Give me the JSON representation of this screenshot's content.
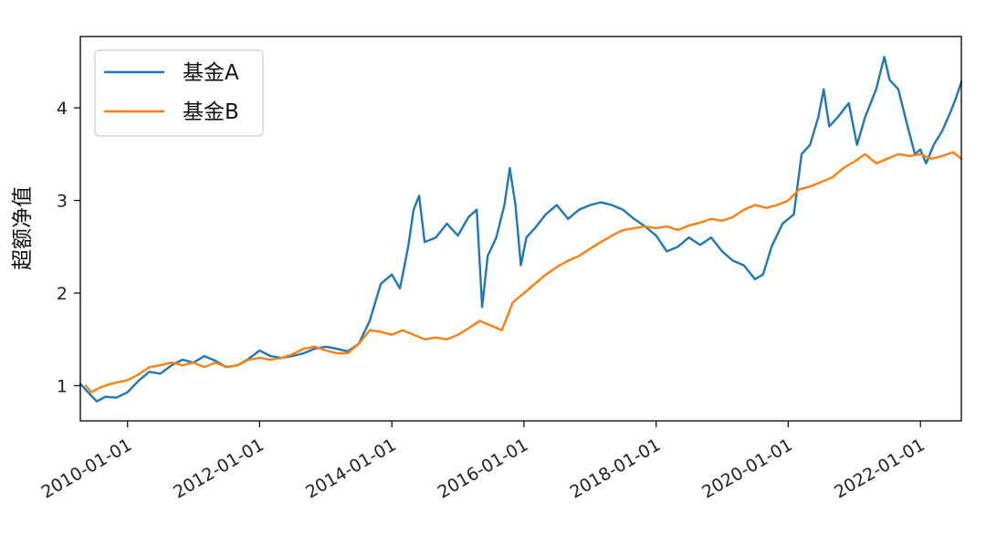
{
  "chart_data": {
    "type": "line",
    "title": "",
    "xlabel": "",
    "ylabel": "超额净值",
    "x_ticks": [
      "2010-01-01",
      "2012-01-01",
      "2014-01-01",
      "2016-01-01",
      "2018-01-01",
      "2020-01-01",
      "2022-01-01"
    ],
    "y_ticks": [
      "1",
      "2",
      "3",
      "4"
    ],
    "xlim": [
      "2009-04-15",
      "2022-08-15"
    ],
    "ylim": [
      0.62,
      4.77
    ],
    "grid": false,
    "legend_position": "top-left",
    "series": [
      {
        "name": "基金A",
        "color": "#1f77b4",
        "points": [
          [
            "2009-04-15",
            1.02
          ],
          [
            "2009-06-01",
            0.92
          ],
          [
            "2009-07-15",
            0.83
          ],
          [
            "2009-09-01",
            0.88
          ],
          [
            "2009-11-01",
            0.87
          ],
          [
            "2010-01-01",
            0.93
          ],
          [
            "2010-03-01",
            1.05
          ],
          [
            "2010-05-01",
            1.15
          ],
          [
            "2010-07-01",
            1.13
          ],
          [
            "2010-09-01",
            1.22
          ],
          [
            "2010-11-01",
            1.28
          ],
          [
            "2011-01-01",
            1.25
          ],
          [
            "2011-03-01",
            1.32
          ],
          [
            "2011-05-01",
            1.27
          ],
          [
            "2011-07-01",
            1.2
          ],
          [
            "2011-09-01",
            1.22
          ],
          [
            "2011-11-01",
            1.29
          ],
          [
            "2012-01-01",
            1.38
          ],
          [
            "2012-03-01",
            1.32
          ],
          [
            "2012-05-01",
            1.3
          ],
          [
            "2012-07-01",
            1.32
          ],
          [
            "2012-09-01",
            1.35
          ],
          [
            "2012-11-01",
            1.4
          ],
          [
            "2013-01-01",
            1.42
          ],
          [
            "2013-03-01",
            1.4
          ],
          [
            "2013-05-01",
            1.37
          ],
          [
            "2013-07-01",
            1.45
          ],
          [
            "2013-09-01",
            1.7
          ],
          [
            "2013-11-01",
            2.1
          ],
          [
            "2014-01-01",
            2.2
          ],
          [
            "2014-02-15",
            2.05
          ],
          [
            "2014-04-01",
            2.5
          ],
          [
            "2014-05-01",
            2.9
          ],
          [
            "2014-06-01",
            3.05
          ],
          [
            "2014-07-01",
            2.55
          ],
          [
            "2014-09-01",
            2.6
          ],
          [
            "2014-11-01",
            2.75
          ],
          [
            "2015-01-01",
            2.62
          ],
          [
            "2015-03-01",
            2.82
          ],
          [
            "2015-04-15",
            2.9
          ],
          [
            "2015-05-15",
            1.85
          ],
          [
            "2015-06-15",
            2.4
          ],
          [
            "2015-08-01",
            2.6
          ],
          [
            "2015-09-15",
            2.95
          ],
          [
            "2015-10-15",
            3.35
          ],
          [
            "2015-11-15",
            2.95
          ],
          [
            "2015-12-15",
            2.3
          ],
          [
            "2016-01-15",
            2.6
          ],
          [
            "2016-03-01",
            2.7
          ],
          [
            "2016-05-01",
            2.85
          ],
          [
            "2016-07-01",
            2.95
          ],
          [
            "2016-09-01",
            2.8
          ],
          [
            "2016-11-01",
            2.9
          ],
          [
            "2017-01-01",
            2.95
          ],
          [
            "2017-03-01",
            2.98
          ],
          [
            "2017-05-01",
            2.95
          ],
          [
            "2017-07-01",
            2.9
          ],
          [
            "2017-09-01",
            2.8
          ],
          [
            "2017-11-01",
            2.72
          ],
          [
            "2018-01-01",
            2.62
          ],
          [
            "2018-03-01",
            2.45
          ],
          [
            "2018-05-01",
            2.5
          ],
          [
            "2018-07-01",
            2.6
          ],
          [
            "2018-09-01",
            2.52
          ],
          [
            "2018-11-01",
            2.6
          ],
          [
            "2019-01-01",
            2.45
          ],
          [
            "2019-03-01",
            2.35
          ],
          [
            "2019-05-01",
            2.3
          ],
          [
            "2019-07-01",
            2.15
          ],
          [
            "2019-08-15",
            2.2
          ],
          [
            "2019-10-01",
            2.5
          ],
          [
            "2019-12-01",
            2.75
          ],
          [
            "2020-02-01",
            2.85
          ],
          [
            "2020-03-15",
            3.5
          ],
          [
            "2020-05-01",
            3.6
          ],
          [
            "2020-06-15",
            3.9
          ],
          [
            "2020-07-15",
            4.2
          ],
          [
            "2020-08-15",
            3.8
          ],
          [
            "2020-10-01",
            3.9
          ],
          [
            "2020-12-01",
            4.05
          ],
          [
            "2021-01-15",
            3.6
          ],
          [
            "2021-03-01",
            3.9
          ],
          [
            "2021-05-01",
            4.2
          ],
          [
            "2021-06-15",
            4.55
          ],
          [
            "2021-07-15",
            4.3
          ],
          [
            "2021-09-01",
            4.2
          ],
          [
            "2021-10-15",
            3.85
          ],
          [
            "2021-12-01",
            3.5
          ],
          [
            "2022-01-01",
            3.55
          ],
          [
            "2022-02-01",
            3.4
          ],
          [
            "2022-03-15",
            3.6
          ],
          [
            "2022-05-01",
            3.75
          ],
          [
            "2022-06-15",
            3.95
          ],
          [
            "2022-07-15",
            4.1
          ],
          [
            "2022-08-15",
            4.28
          ]
        ]
      },
      {
        "name": "基金B",
        "color": "#ff7f0e",
        "points": [
          [
            "2009-05-15",
            1.0
          ],
          [
            "2009-06-15",
            0.93
          ],
          [
            "2009-08-01",
            0.98
          ],
          [
            "2009-10-01",
            1.02
          ],
          [
            "2010-01-01",
            1.06
          ],
          [
            "2010-03-01",
            1.12
          ],
          [
            "2010-05-01",
            1.2
          ],
          [
            "2010-07-01",
            1.22
          ],
          [
            "2010-09-01",
            1.25
          ],
          [
            "2010-11-01",
            1.22
          ],
          [
            "2011-01-01",
            1.25
          ],
          [
            "2011-03-01",
            1.2
          ],
          [
            "2011-05-01",
            1.25
          ],
          [
            "2011-07-01",
            1.2
          ],
          [
            "2011-09-01",
            1.22
          ],
          [
            "2011-11-01",
            1.28
          ],
          [
            "2012-01-01",
            1.3
          ],
          [
            "2012-03-01",
            1.28
          ],
          [
            "2012-05-01",
            1.3
          ],
          [
            "2012-07-01",
            1.34
          ],
          [
            "2012-09-01",
            1.4
          ],
          [
            "2012-11-01",
            1.42
          ],
          [
            "2013-01-01",
            1.38
          ],
          [
            "2013-03-01",
            1.35
          ],
          [
            "2013-05-01",
            1.35
          ],
          [
            "2013-07-01",
            1.45
          ],
          [
            "2013-09-01",
            1.6
          ],
          [
            "2013-11-01",
            1.58
          ],
          [
            "2014-01-01",
            1.55
          ],
          [
            "2014-03-01",
            1.6
          ],
          [
            "2014-05-01",
            1.55
          ],
          [
            "2014-07-01",
            1.5
          ],
          [
            "2014-09-01",
            1.52
          ],
          [
            "2014-11-01",
            1.5
          ],
          [
            "2015-01-01",
            1.55
          ],
          [
            "2015-03-01",
            1.62
          ],
          [
            "2015-05-01",
            1.7
          ],
          [
            "2015-07-01",
            1.65
          ],
          [
            "2015-09-01",
            1.6
          ],
          [
            "2015-11-01",
            1.9
          ],
          [
            "2016-01-01",
            2.0
          ],
          [
            "2016-03-01",
            2.1
          ],
          [
            "2016-05-01",
            2.2
          ],
          [
            "2016-07-01",
            2.28
          ],
          [
            "2016-09-01",
            2.35
          ],
          [
            "2016-11-01",
            2.4
          ],
          [
            "2017-01-01",
            2.48
          ],
          [
            "2017-03-01",
            2.55
          ],
          [
            "2017-05-01",
            2.62
          ],
          [
            "2017-07-01",
            2.68
          ],
          [
            "2017-09-01",
            2.7
          ],
          [
            "2017-11-01",
            2.72
          ],
          [
            "2018-01-01",
            2.7
          ],
          [
            "2018-03-01",
            2.72
          ],
          [
            "2018-05-01",
            2.68
          ],
          [
            "2018-07-01",
            2.73
          ],
          [
            "2018-09-01",
            2.76
          ],
          [
            "2018-11-01",
            2.8
          ],
          [
            "2019-01-01",
            2.78
          ],
          [
            "2019-03-01",
            2.82
          ],
          [
            "2019-05-01",
            2.9
          ],
          [
            "2019-07-01",
            2.95
          ],
          [
            "2019-09-01",
            2.92
          ],
          [
            "2019-11-01",
            2.95
          ],
          [
            "2020-01-01",
            3.0
          ],
          [
            "2020-03-01",
            3.12
          ],
          [
            "2020-05-01",
            3.15
          ],
          [
            "2020-07-01",
            3.2
          ],
          [
            "2020-09-01",
            3.25
          ],
          [
            "2020-11-01",
            3.35
          ],
          [
            "2021-01-01",
            3.42
          ],
          [
            "2021-03-01",
            3.5
          ],
          [
            "2021-05-01",
            3.4
          ],
          [
            "2021-07-01",
            3.45
          ],
          [
            "2021-09-01",
            3.5
          ],
          [
            "2021-11-01",
            3.48
          ],
          [
            "2022-01-01",
            3.5
          ],
          [
            "2022-03-01",
            3.45
          ],
          [
            "2022-05-01",
            3.48
          ],
          [
            "2022-07-01",
            3.52
          ],
          [
            "2022-08-15",
            3.45
          ]
        ]
      }
    ]
  }
}
